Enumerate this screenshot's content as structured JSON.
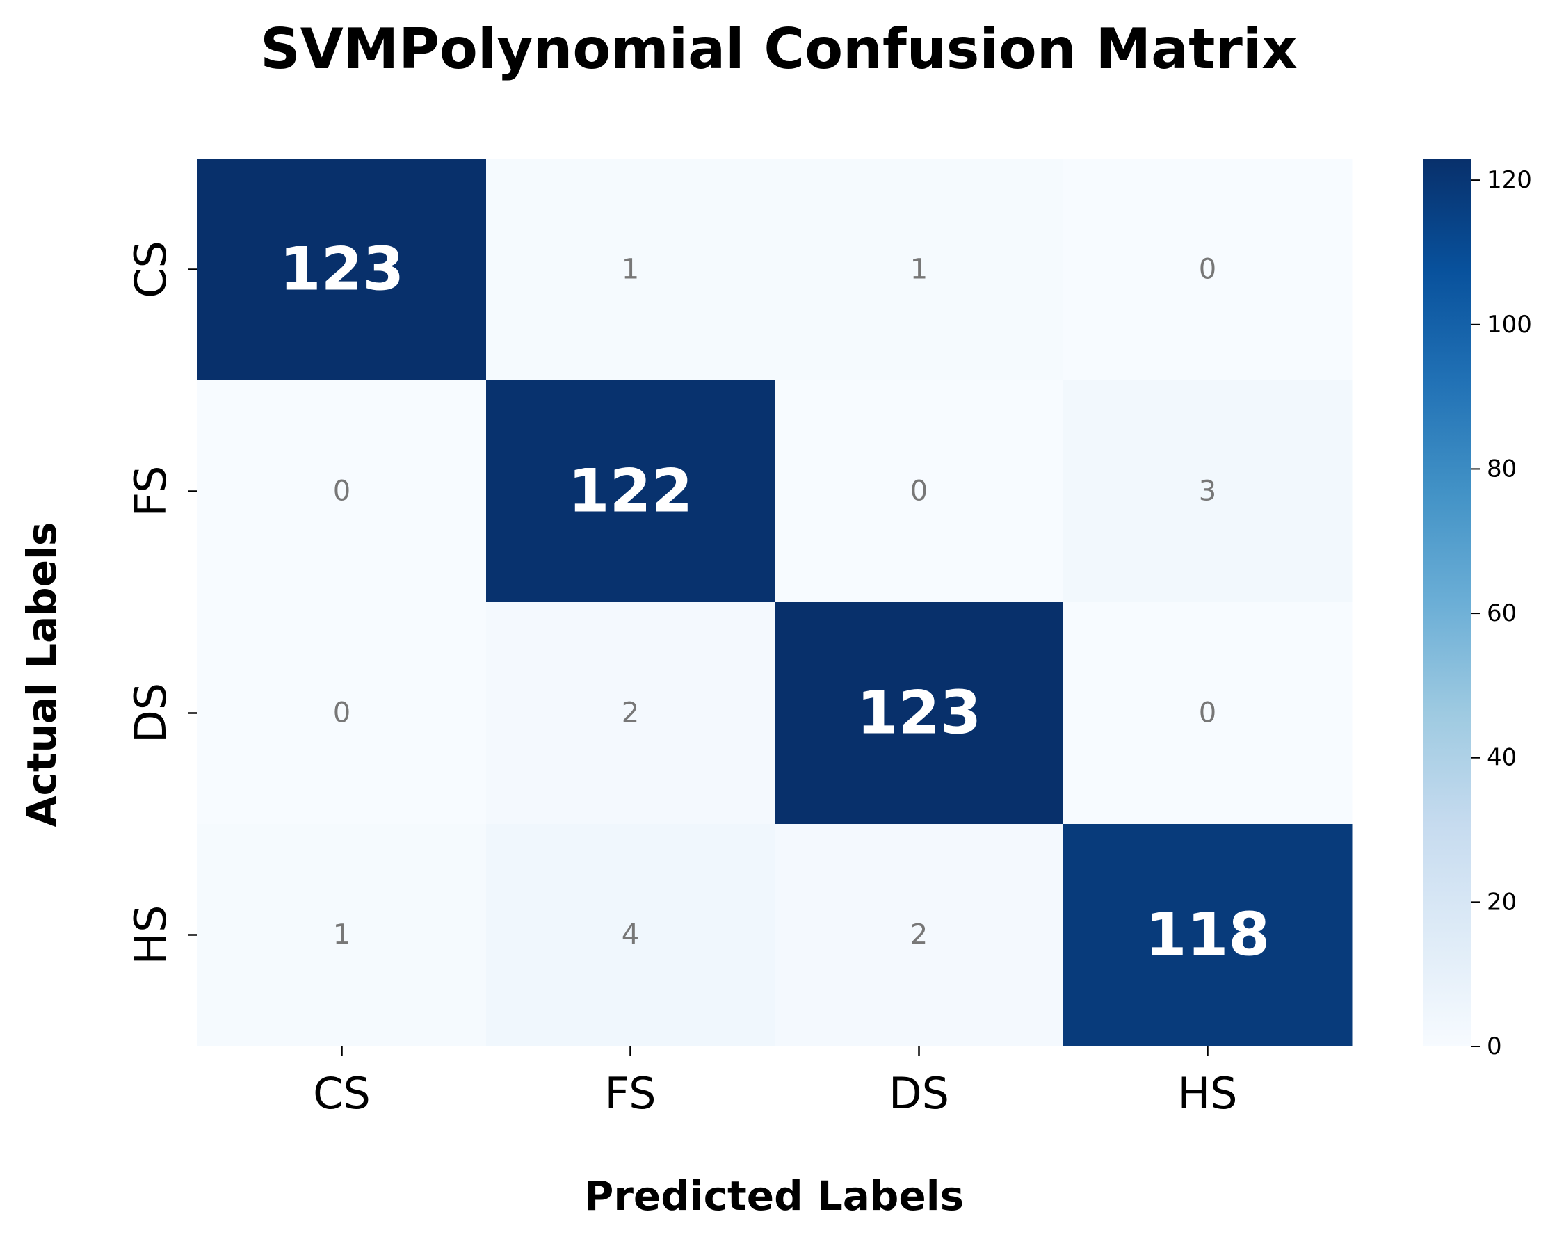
{
  "chart_data": {
    "type": "heatmap",
    "title": "SVMPolynomial Confusion Matrix",
    "xlabel": "Predicted Labels",
    "ylabel": "Actual Labels",
    "x_categories": [
      "CS",
      "FS",
      "DS",
      "HS"
    ],
    "y_categories": [
      "CS",
      "FS",
      "DS",
      "HS"
    ],
    "matrix": [
      [
        123,
        1,
        1,
        0
      ],
      [
        0,
        122,
        0,
        3
      ],
      [
        0,
        2,
        123,
        0
      ],
      [
        1,
        4,
        2,
        118
      ]
    ],
    "colorbar": {
      "colormap": "Blues",
      "range": [
        0,
        123
      ],
      "ticks": [
        0,
        20,
        40,
        60,
        80,
        100,
        120
      ]
    },
    "colors": {
      "low": "#f7fbff",
      "high": "#08306b",
      "strong_text": "#ffffff",
      "weak_text": "#777777"
    }
  }
}
